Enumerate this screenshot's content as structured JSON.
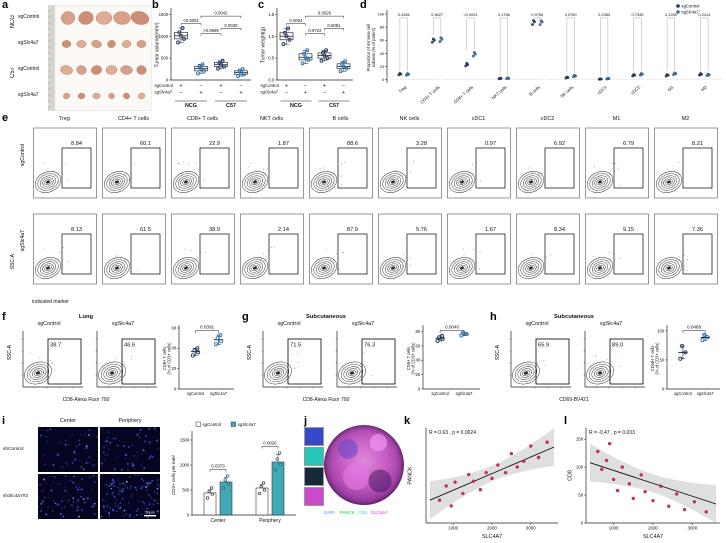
{
  "panels": {
    "a": {
      "label": "a",
      "group_labels": [
        "NCG",
        "C57"
      ],
      "row_labels": [
        "sgControl",
        "sgSlc4a7",
        "sgControl",
        "sgSlc4a7"
      ],
      "tumor_counts": [
        5,
        6,
        6,
        6
      ],
      "tumor_radii": [
        8,
        4.5,
        5.5,
        3.5
      ]
    },
    "b": {
      "label": "b"
    },
    "c": {
      "label": "c"
    },
    "d": {
      "label": "d"
    },
    "e": {
      "label": "e",
      "col_headers": [
        "Treg",
        "CD4+ T cells",
        "CD8+ T cells",
        "NKT cells",
        "B cells",
        "NK cells",
        "cDC1",
        "cDC2",
        "M1",
        "M2"
      ],
      "row_labels": [
        "sgControl",
        "sgSlc4a7"
      ],
      "gate_percentages": [
        [
          "8.84",
          "60.1",
          "22.9",
          "1.87",
          "88.6",
          "3.28",
          "0.97",
          "6.92",
          "6.79",
          "8.21"
        ],
        [
          "8.13",
          "61.5",
          "38.9",
          "2.14",
          "87.9",
          "5.76",
          "1.67",
          "8.34",
          "9.15",
          "7.36"
        ]
      ],
      "ylabel": "SSC-A",
      "xlabel": "indicated marker"
    },
    "f": {
      "label": "f",
      "title": "Lung",
      "flow_titles": [
        "sgControl",
        "sgSlc4a7"
      ],
      "gate_percentages": [
        "38.7",
        "46.6"
      ],
      "ylabel": "SSC-A",
      "xlabel": "CD8-Alexa Fluor 700"
    },
    "g": {
      "label": "g",
      "title": "Subcutaneous",
      "flow_titles": [
        "sgControl",
        "sgSlc4a7"
      ],
      "gate_percentages": [
        "71.5",
        "76.3"
      ],
      "ylabel": "SSC-A",
      "xlabel": "CD8-Alexa Fluor 700"
    },
    "h": {
      "label": "h",
      "title": "Subcutaneous",
      "flow_titles": [
        "sgControl",
        "sgSlc4a7"
      ],
      "gate_percentages": [
        "65.9",
        "89.0"
      ],
      "ylabel": "SSC-A",
      "xlabel": "CD69-BV421"
    },
    "i": {
      "label": "i",
      "col_headers": [
        "Center",
        "Periphery"
      ],
      "row_labels": [
        "shControl",
        "shSlc4a7#2"
      ],
      "scale_bar": "50μm",
      "speckle_counts": [
        [
          45,
          60
        ],
        [
          80,
          130
        ]
      ]
    },
    "j": {
      "label": "j",
      "inset_colors": [
        "#3748c8",
        "#27c7b8",
        "#16293a",
        "#cc49cc"
      ],
      "markers": [
        {
          "name": "DAPI",
          "color": "#8fa8ff"
        },
        {
          "name": "PANCK",
          "color": "#52e06c"
        },
        {
          "name": "CD8",
          "color": "#5fe6e6"
        },
        {
          "name": "SLC4A7",
          "color": "#e86fe8"
        }
      ]
    },
    "k": {
      "label": "k"
    },
    "l": {
      "label": "l"
    }
  },
  "chart_data": [
    {
      "id": "tumor_volume",
      "type": "boxdot",
      "ylabel": "Tumor volume(mm³)",
      "ylim": [
        0,
        1600
      ],
      "yticks": [
        "0",
        "500",
        "1000",
        "1500"
      ],
      "group_labels": [
        "NCG",
        "C57"
      ],
      "sign_rows": [
        {
          "label": "sgControl",
          "signs": [
            "+",
            "−",
            "+",
            "−"
          ]
        },
        {
          "label": "sgSlc4a7",
          "signs": [
            "−",
            "+",
            "−",
            "+"
          ]
        }
      ],
      "colors": [
        "#1f3864",
        "#2e75b6",
        "#1f3864",
        "#2e75b6"
      ],
      "values": [
        [
          860,
          940,
          1010,
          1090,
          1190
        ],
        [
          150,
          210,
          260,
          310,
          360
        ],
        [
          260,
          310,
          350,
          400,
          440
        ],
        [
          90,
          130,
          170,
          210,
          250
        ]
      ],
      "comparisons": [
        {
          "a": 0,
          "b": 1,
          "p": "<0.0001",
          "y": 1290
        },
        {
          "a": 1,
          "b": 2,
          "p": ">0.9999",
          "y": 1060
        },
        {
          "a": 2,
          "b": 3,
          "p": "0.0039",
          "y": 1180
        },
        {
          "a": 1,
          "b": 3,
          "p": "0.0042",
          "y": 1460
        }
      ]
    },
    {
      "id": "tumor_weight",
      "type": "boxdot",
      "ylabel": "Tumor weight(g)",
      "ylim": [
        0,
        1.6
      ],
      "yticks": [
        "0.0",
        "0.5",
        "1.0",
        "1.5"
      ],
      "group_labels": [
        "NCG",
        "C57"
      ],
      "sign_rows": [
        {
          "label": "sgControl",
          "signs": [
            "+",
            "−",
            "+",
            "−"
          ]
        },
        {
          "label": "sgSlc4a7",
          "signs": [
            "−",
            "+",
            "−",
            "+"
          ]
        }
      ],
      "colors": [
        "#1f3864",
        "#2e75b6",
        "#1f3864",
        "#2e75b6"
      ],
      "values": [
        [
          0.82,
          0.92,
          1.0,
          1.08,
          1.18
        ],
        [
          0.38,
          0.46,
          0.52,
          0.6,
          0.68
        ],
        [
          0.44,
          0.5,
          0.56,
          0.62,
          0.68
        ],
        [
          0.2,
          0.26,
          0.31,
          0.37,
          0.43
        ]
      ],
      "comparisons": [
        {
          "a": 0,
          "b": 1,
          "p": "0.0004",
          "y": 1.29
        },
        {
          "a": 1,
          "b": 2,
          "p": "0.9722",
          "y": 1.06
        },
        {
          "a": 2,
          "b": 3,
          "p": "0.0081",
          "y": 1.18
        },
        {
          "a": 1,
          "b": 3,
          "p": "0.0026",
          "y": 1.46
        }
      ]
    },
    {
      "id": "immune_subsets",
      "type": "paired-dots",
      "ylabel_lines": [
        "Proportion of immune cell",
        "subsets (% of parent)"
      ],
      "categories": [
        "Treg",
        "CD4+ T cells",
        "CD8+ T cells",
        "NKT cells",
        "B cells",
        "NK cells",
        "cDC1",
        "cDC2",
        "M1",
        "M2"
      ],
      "p_values": [
        "0.4156",
        "0.3627",
        "<0.0001",
        "0.1756",
        "0.9766",
        "0.0780",
        "0.2383",
        "0.7345",
        "0.1255",
        "0.2414"
      ],
      "series": [
        {
          "name": "sgControl",
          "color": "#1f3864",
          "values": [
            [
              7.5,
              8.5,
              9.6
            ],
            [
              57,
              60,
              62
            ],
            [
              21,
              23,
              25
            ],
            [
              1.4,
              1.9,
              2.4
            ],
            [
              84,
              88,
              90
            ],
            [
              2.6,
              3.3,
              4.0
            ],
            [
              0.7,
              1.0,
              1.3
            ],
            [
              5.8,
              6.9,
              7.9
            ],
            [
              5.6,
              6.8,
              7.8
            ],
            [
              7.0,
              8.2,
              9.3
            ]
          ]
        },
        {
          "name": "sgSlc4a7",
          "color": "#2e75b6",
          "values": [
            [
              6.9,
              8.1,
              9.3
            ],
            [
              58,
              61.5,
              64
            ],
            [
              36,
              39,
              41.5
            ],
            [
              1.7,
              2.1,
              2.7
            ],
            [
              84,
              87.9,
              89.5
            ],
            [
              4.6,
              5.8,
              6.8
            ],
            [
              1.2,
              1.7,
              2.1
            ],
            [
              7.0,
              8.3,
              9.4
            ],
            [
              7.8,
              9.2,
              10.4
            ],
            [
              6.2,
              7.4,
              8.4
            ]
          ]
        }
      ],
      "ylim": [
        -5,
        103
      ],
      "yticks": [
        "0",
        "20",
        "40",
        "60",
        "80",
        "100"
      ]
    },
    {
      "id": "lung_cd8",
      "type": "dotmean",
      "p": "0.0391",
      "ylabel_lines": [
        "CD8+ T cells",
        "(% of CD3+ cells)"
      ],
      "categories": [
        "sgControl",
        "sgSlc4a7"
      ],
      "colors": [
        "#1f3864",
        "#2e75b6"
      ],
      "values": [
        [
          33,
          36,
          38,
          40
        ],
        [
          44,
          47,
          50,
          53
        ]
      ],
      "ylim": [
        0,
        60
      ],
      "yticks": [
        "0",
        "20",
        "40",
        "60"
      ]
    },
    {
      "id": "subq_cd8",
      "type": "dotmean",
      "p": "0.0040",
      "ylabel_lines": [
        "CD8+ T cells",
        "(% of CD3+ cells)"
      ],
      "categories": [
        "sgControl",
        "sgSlc4a7"
      ],
      "colors": [
        "#1f3864",
        "#2e75b6"
      ],
      "values": [
        [
          67,
          70,
          72,
          74
        ],
        [
          74.5,
          76.5,
          78.5
        ]
      ],
      "ylim": [
        0,
        85
      ],
      "yticks": [
        "0",
        "20",
        "40",
        "60",
        "80"
      ]
    },
    {
      "id": "subq_cd69",
      "type": "dotmean",
      "p": "0.0468",
      "ylabel_lines": [
        "CD69+ T cells",
        "(% of CD3+ cells)"
      ],
      "categories": [
        "sgControl",
        "sgSlc4a7"
      ],
      "colors": [
        "#1f3864",
        "#2e75b6"
      ],
      "values": [
        [
          52,
          63,
          74
        ],
        [
          84,
          89,
          93
        ]
      ],
      "ylim": [
        0,
        105
      ],
      "yticks": [
        "0",
        "50",
        "100"
      ]
    },
    {
      "id": "cd3_density",
      "type": "bars",
      "ylabel": "CD3+ cells per mm²",
      "categories": [
        "Center",
        "Periphery"
      ],
      "series": [
        {
          "name": "sgControl",
          "color": "#ffffff",
          "values": [
            440,
            540
          ],
          "dots": [
            [
              340,
              420,
              470,
              540
            ],
            [
              430,
              500,
              570,
              640
            ]
          ]
        },
        {
          "name": "sgSlc4a7",
          "color": "#41a9b6",
          "values": [
            660,
            1060
          ],
          "dots": [
            [
              540,
              620,
              700,
              780
            ],
            [
              900,
              1010,
              1120,
              1240
            ]
          ]
        }
      ],
      "p_values": [
        "0.0373",
        "0.0026"
      ],
      "ylim": [
        0,
        1600
      ],
      "yticks": [
        "0",
        "500",
        "1000",
        "1500"
      ]
    },
    {
      "id": "panck_slc4a7",
      "type": "scatter",
      "annotation": "R = 0.63 , p = 0.0024",
      "xlabel": "SLC4A7",
      "ylabel": "PANCK",
      "point_color": "#c2255c",
      "xlim": [
        300,
        3700
      ],
      "xticks": [
        "1000",
        "2000",
        "3000"
      ],
      "ylim": [
        0,
        10
      ],
      "yticks": [],
      "points": [
        [
          650,
          2.4
        ],
        [
          820,
          3.9
        ],
        [
          950,
          1.8
        ],
        [
          1050,
          4.3
        ],
        [
          1250,
          3.1
        ],
        [
          1400,
          5.1
        ],
        [
          1520,
          4.4
        ],
        [
          1700,
          3.5
        ],
        [
          1850,
          5.3
        ],
        [
          2000,
          4.7
        ],
        [
          2150,
          6.1
        ],
        [
          2350,
          5.3
        ],
        [
          2500,
          7.3
        ],
        [
          2650,
          5.9
        ],
        [
          2820,
          6.5
        ],
        [
          3000,
          8.1
        ],
        [
          3200,
          6.9
        ],
        [
          3420,
          8.5
        ]
      ],
      "fit": [
        [
          400,
          2.4
        ],
        [
          3600,
          8.0
        ]
      ],
      "band": {
        "end": 2.0,
        "mid": 0.8
      }
    },
    {
      "id": "cd8_slc4a7",
      "type": "scatter",
      "annotation": "R = -0.47 , p = 0.033",
      "xlabel": "SLC4A7",
      "ylabel": "CD8",
      "point_color": "#c2255c",
      "xlim": [
        300,
        3700
      ],
      "xticks": [
        "1000",
        "2000",
        "3000"
      ],
      "ylim": [
        0,
        170
      ],
      "yticks": [
        "0",
        "50",
        "100",
        "150"
      ],
      "points": [
        [
          600,
          128
        ],
        [
          700,
          96
        ],
        [
          820,
          112
        ],
        [
          900,
          142
        ],
        [
          1000,
          78
        ],
        [
          1100,
          58
        ],
        [
          1220,
          100
        ],
        [
          1400,
          70
        ],
        [
          1500,
          44
        ],
        [
          1700,
          86
        ],
        [
          1800,
          56
        ],
        [
          2000,
          40
        ],
        [
          2200,
          66
        ],
        [
          2400,
          30
        ],
        [
          2600,
          52
        ],
        [
          2800,
          24
        ],
        [
          3050,
          38
        ],
        [
          3350,
          20
        ]
      ],
      "fit": [
        [
          400,
          108
        ],
        [
          3600,
          34
        ]
      ],
      "band": {
        "end": 34,
        "mid": 16
      }
    }
  ]
}
